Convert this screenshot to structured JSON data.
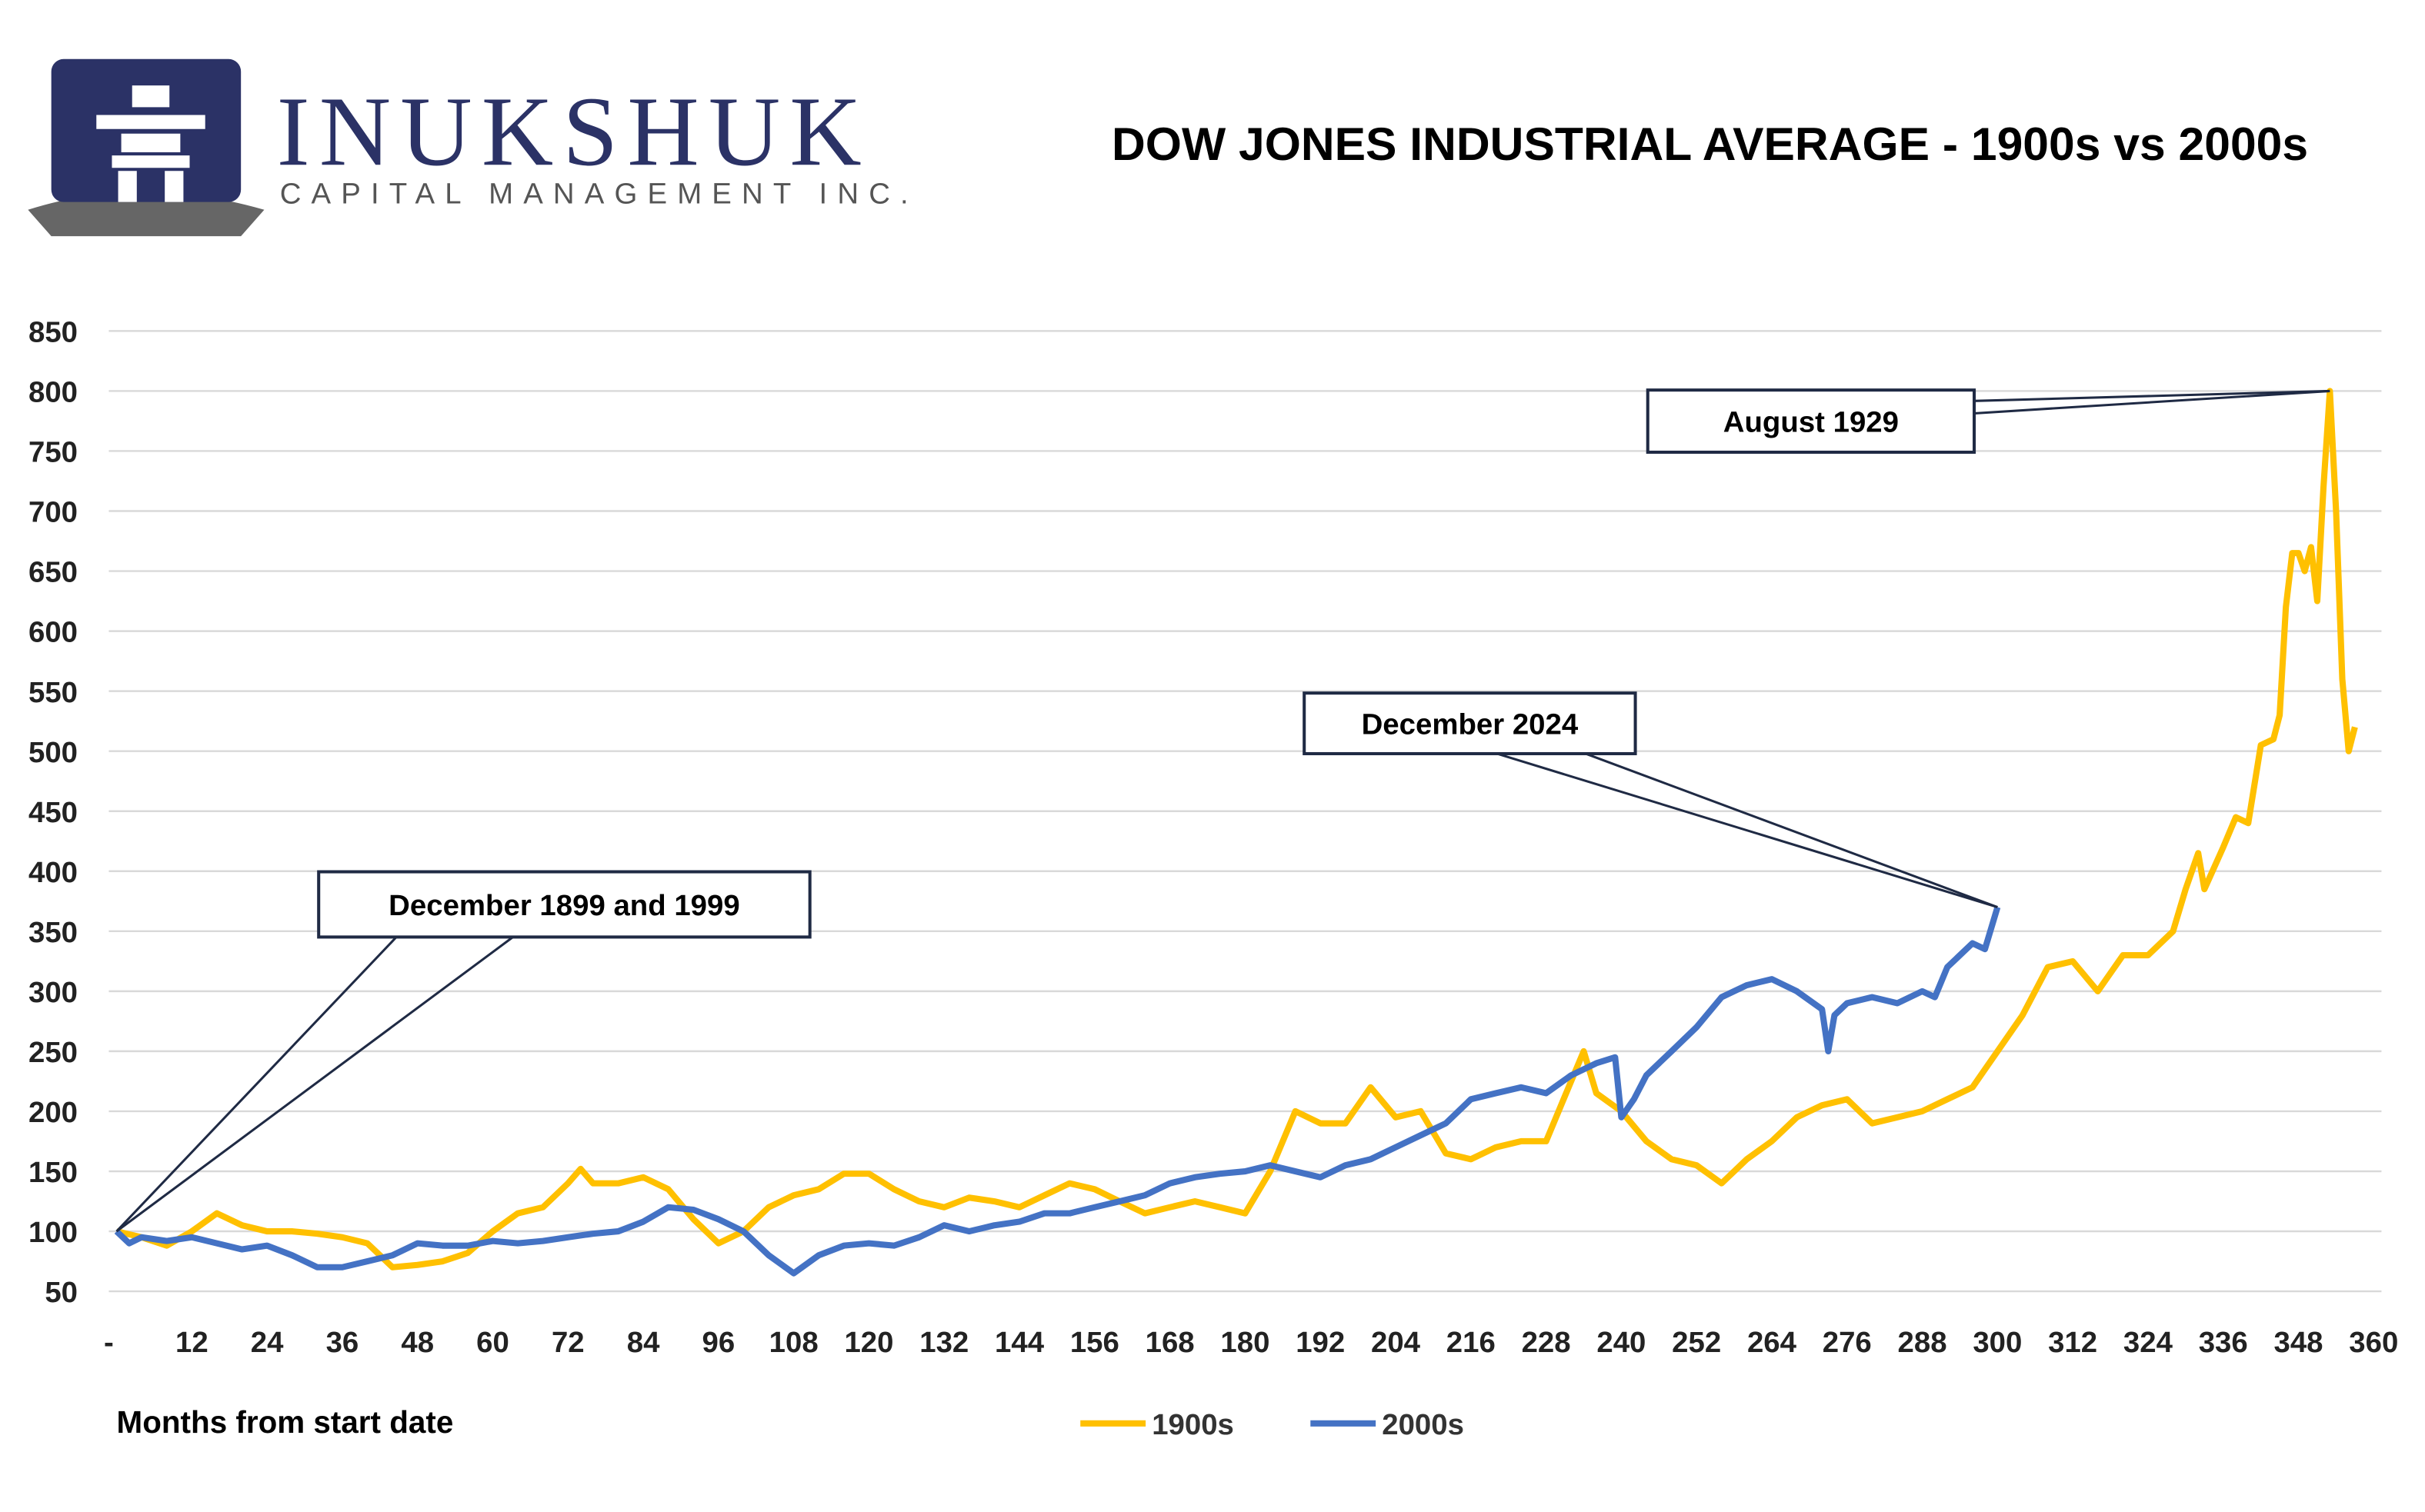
{
  "header": {
    "brand": "INUKSHUK",
    "tagline": "CAPITAL MANAGEMENT INC."
  },
  "chart_data": {
    "type": "line",
    "title": "DOW JONES INDUSTRIAL AVERAGE - 1900s vs 2000s",
    "x_label": "Months from start date",
    "xlim": [
      0,
      360
    ],
    "xticks": [
      {
        "value": 0,
        "label": "-"
      },
      12,
      24,
      36,
      48,
      60,
      72,
      84,
      96,
      108,
      120,
      132,
      144,
      156,
      168,
      180,
      192,
      204,
      216,
      228,
      240,
      252,
      264,
      276,
      288,
      300,
      312,
      324,
      336,
      348,
      360
    ],
    "ylim": [
      50,
      850
    ],
    "yticks": [
      50,
      100,
      150,
      200,
      250,
      300,
      350,
      400,
      450,
      500,
      550,
      600,
      650,
      700,
      750,
      800,
      850
    ],
    "grid": true,
    "legend": "bottom",
    "annotations": [
      "December 1899 and 1999",
      "December 2024",
      "August 1929"
    ],
    "series": [
      {
        "name": "1900s",
        "color": "#FFC000",
        "x": [
          0,
          4,
          8,
          12,
          16,
          20,
          24,
          28,
          32,
          36,
          40,
          44,
          48,
          52,
          56,
          60,
          64,
          68,
          72,
          74,
          76,
          80,
          84,
          88,
          92,
          96,
          100,
          104,
          108,
          112,
          116,
          120,
          124,
          128,
          132,
          136,
          140,
          144,
          148,
          152,
          156,
          160,
          164,
          168,
          172,
          176,
          180,
          184,
          188,
          192,
          196,
          200,
          204,
          208,
          212,
          216,
          220,
          224,
          228,
          232,
          234,
          236,
          240,
          244,
          248,
          252,
          256,
          260,
          264,
          268,
          272,
          276,
          280,
          284,
          288,
          292,
          296,
          300,
          304,
          308,
          312,
          316,
          320,
          324,
          328,
          330,
          332,
          333,
          336,
          338,
          340,
          342,
          344,
          345,
          346,
          347,
          348,
          349,
          350,
          351,
          352,
          353,
          354,
          355,
          356,
          357
        ],
        "values": [
          100,
          95,
          88,
          100,
          115,
          105,
          100,
          100,
          98,
          95,
          90,
          70,
          72,
          75,
          82,
          100,
          115,
          120,
          140,
          152,
          140,
          140,
          145,
          135,
          110,
          90,
          100,
          120,
          130,
          135,
          148,
          148,
          135,
          125,
          120,
          128,
          125,
          120,
          130,
          140,
          135,
          125,
          115,
          120,
          125,
          120,
          115,
          150,
          200,
          190,
          190,
          220,
          195,
          200,
          165,
          160,
          170,
          175,
          175,
          225,
          250,
          215,
          200,
          175,
          160,
          155,
          140,
          160,
          175,
          195,
          205,
          210,
          190,
          195,
          200,
          210,
          220,
          250,
          280,
          320,
          325,
          300,
          330,
          330,
          350,
          385,
          415,
          385,
          420,
          445,
          440,
          505,
          510,
          530,
          620,
          665,
          665,
          650,
          670,
          625,
          720,
          800,
          700,
          560,
          500,
          520
        ]
      },
      {
        "name": "2000s",
        "color": "#4472C4",
        "x": [
          0,
          2,
          4,
          8,
          12,
          16,
          20,
          24,
          28,
          32,
          36,
          40,
          44,
          48,
          52,
          56,
          60,
          64,
          68,
          72,
          76,
          80,
          84,
          88,
          92,
          96,
          100,
          104,
          108,
          112,
          116,
          120,
          124,
          128,
          132,
          136,
          140,
          144,
          148,
          152,
          156,
          160,
          164,
          168,
          172,
          176,
          180,
          184,
          188,
          192,
          196,
          200,
          204,
          208,
          212,
          216,
          220,
          224,
          228,
          232,
          236,
          239,
          240,
          242,
          244,
          248,
          252,
          256,
          260,
          264,
          268,
          272,
          273,
          274,
          276,
          280,
          284,
          288,
          290,
          292,
          296,
          298,
          300
        ],
        "values": [
          100,
          90,
          95,
          92,
          95,
          90,
          85,
          88,
          80,
          70,
          70,
          75,
          80,
          90,
          88,
          88,
          92,
          90,
          92,
          95,
          98,
          100,
          108,
          120,
          118,
          110,
          100,
          80,
          65,
          80,
          88,
          90,
          88,
          95,
          105,
          100,
          105,
          108,
          115,
          115,
          120,
          125,
          130,
          140,
          145,
          148,
          150,
          155,
          150,
          145,
          155,
          160,
          170,
          180,
          190,
          210,
          215,
          220,
          215,
          230,
          240,
          245,
          195,
          210,
          230,
          250,
          270,
          295,
          305,
          310,
          300,
          285,
          250,
          280,
          290,
          295,
          290,
          300,
          295,
          320,
          340,
          335,
          370
        ]
      }
    ]
  }
}
